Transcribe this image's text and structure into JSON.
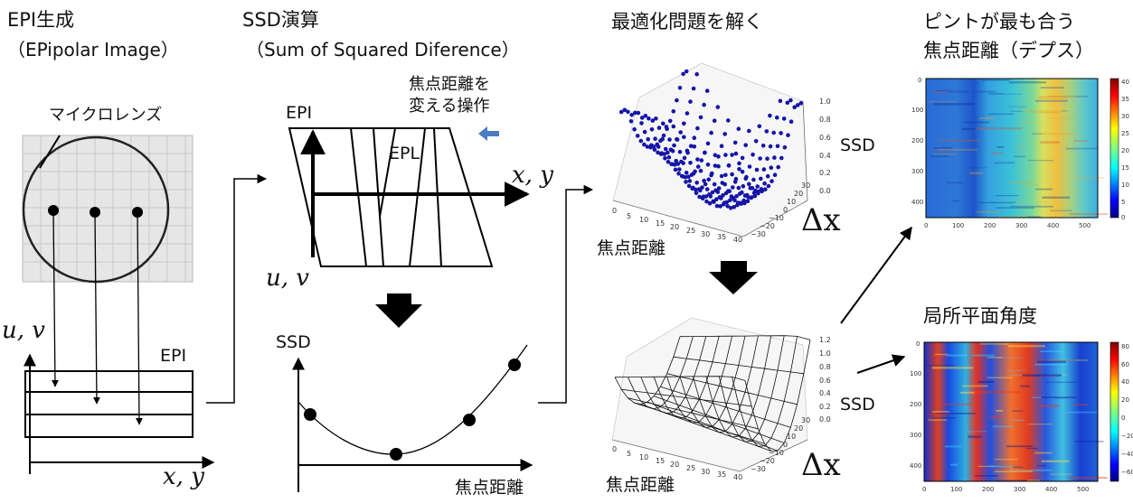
{
  "col1": {
    "title": "EPI生成",
    "subtitle": "（EPipolar Image）",
    "lens_label": "マイクロレンズ",
    "axis_uv": "u, v",
    "epi_label": "EPI",
    "axis_xy": "x, y"
  },
  "col2": {
    "title": "SSD演算",
    "subtitle": "（Sum of Squared Diference）",
    "op_label_1": "焦点距離を",
    "op_label_2": "変える操作",
    "epi_label": "EPI",
    "epl_label": "EPL",
    "axis_xy": "x, y",
    "axis_uv": "u, v",
    "ssd_axis": "SSD",
    "focal_axis": "焦点距離"
  },
  "col3": {
    "title": "最適化問題を解く",
    "ssd_label_top": "SSD",
    "dx_label_top": "Δx",
    "focal_label_top": "焦点距離",
    "ssd_label_bottom": "SSD",
    "dx_label_bottom": "Δx",
    "focal_label_bottom": "焦点距離",
    "z_ticks_top": [
      "1.0",
      "0.8",
      "0.6",
      "0.4",
      "0.2",
      "0.0"
    ],
    "z_ticks_bottom": [
      "1.2",
      "1.0",
      "0.8",
      "0.6",
      "0.4",
      "0.2",
      "0.0"
    ],
    "x_ticks": [
      "0",
      "5",
      "10",
      "15",
      "20",
      "25",
      "30",
      "35",
      "40"
    ],
    "y_ticks": [
      "−30",
      "−20",
      "−10",
      "0",
      "10",
      "20",
      "30"
    ]
  },
  "col4": {
    "title_1": "ピントが最も合う",
    "title_2": "焦点距離（デプス）",
    "title_3": "局所平面角度",
    "map_x_ticks": [
      "0",
      "100",
      "200",
      "300",
      "400",
      "500"
    ],
    "map_y_ticks": [
      "0",
      "100",
      "200",
      "300",
      "400"
    ],
    "cbar_top_ticks": [
      "40",
      "35",
      "30",
      "25",
      "20",
      "15",
      "10",
      "5",
      "0"
    ],
    "cbar_bottom_ticks": [
      "80",
      "60",
      "40",
      "20",
      "0",
      "−20",
      "−40",
      "−60"
    ]
  },
  "colors": {
    "arrow_blue": "#4a7cc4",
    "grid_bg": "#e6e6e6",
    "scatter_dots": "#1414a8"
  }
}
